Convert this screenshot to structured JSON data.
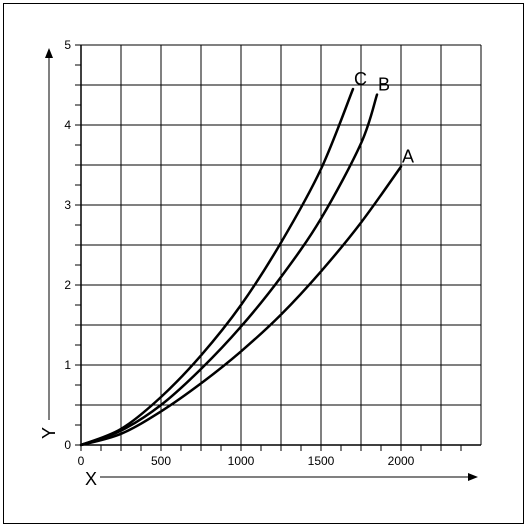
{
  "chart_data": {
    "type": "line",
    "title": "",
    "xlabel": "X",
    "ylabel": "Y",
    "xlim": [
      0,
      2500
    ],
    "ylim": [
      0,
      5
    ],
    "x_ticks": [
      0,
      500,
      1000,
      1500,
      2000
    ],
    "y_ticks": [
      0,
      1,
      2,
      3,
      4,
      5
    ],
    "x_tick_labels": [
      "0",
      "500",
      "1000",
      "1500",
      "2000"
    ],
    "y_tick_labels": [
      "0",
      "1",
      "2",
      "3",
      "4",
      "5"
    ],
    "grid": true,
    "legend": "none",
    "series": [
      {
        "name": "A",
        "color": "#000000",
        "x": [
          0,
          250,
          500,
          750,
          1000,
          1250,
          1500,
          1750,
          2000
        ],
        "y": [
          0,
          0.14,
          0.42,
          0.77,
          1.17,
          1.63,
          2.17,
          2.78,
          3.48
        ]
      },
      {
        "name": "B",
        "color": "#000000",
        "x": [
          0,
          250,
          500,
          750,
          1000,
          1250,
          1500,
          1750,
          1850
        ],
        "y": [
          0,
          0.18,
          0.5,
          0.95,
          1.48,
          2.1,
          2.83,
          3.77,
          4.38
        ]
      },
      {
        "name": "C",
        "color": "#000000",
        "x": [
          0,
          250,
          500,
          750,
          1000,
          1250,
          1500,
          1700
        ],
        "y": [
          0,
          0.2,
          0.6,
          1.12,
          1.75,
          2.53,
          3.45,
          4.45
        ]
      }
    ]
  }
}
